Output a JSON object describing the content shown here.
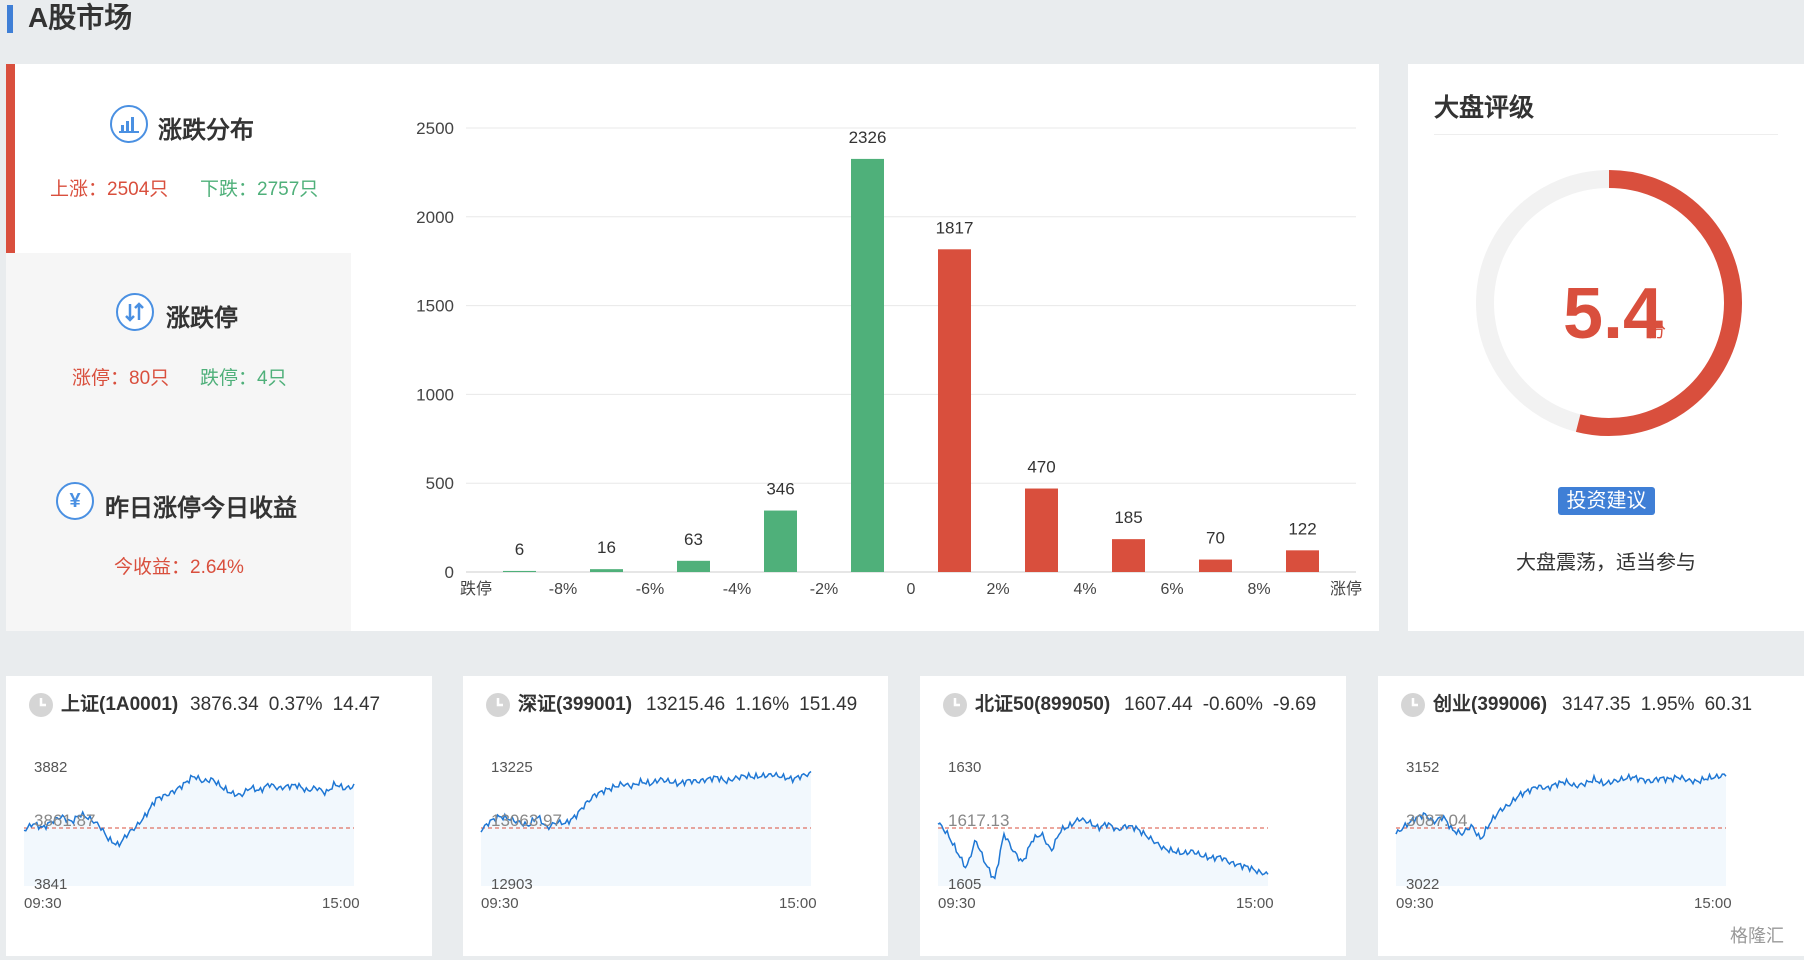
{
  "page_title": "A股市场",
  "stats": {
    "dist_title": "涨跌分布",
    "up_label": "上涨：2504只",
    "down_label": "下跌：2757只",
    "limit_title": "涨跌停",
    "limit_up_label": "涨停：80只",
    "limit_down_label": "跌停：4只",
    "yield_title": "昨日涨停今日收益",
    "yield_label": "今收益：2.64%",
    "yield_icon_glyph": "¥"
  },
  "chart_data": {
    "type": "bar",
    "categories": [
      "跌停",
      "-8%",
      "-6%",
      "-4%",
      "-2%",
      "0",
      "2%",
      "4%",
      "6%",
      "8%",
      "涨停"
    ],
    "bars": [
      {
        "value": 6,
        "color": "#4fb07a"
      },
      {
        "value": 16,
        "color": "#4fb07a"
      },
      {
        "value": 63,
        "color": "#4fb07a"
      },
      {
        "value": 346,
        "color": "#4fb07a"
      },
      {
        "value": 2326,
        "color": "#4fb07a"
      },
      {
        "value": 1817,
        "color": "#d94f3d"
      },
      {
        "value": 470,
        "color": "#d94f3d"
      },
      {
        "value": 185,
        "color": "#d94f3d"
      },
      {
        "value": 70,
        "color": "#d94f3d"
      },
      {
        "value": 122,
        "color": "#d94f3d"
      }
    ],
    "y_ticks": [
      0,
      500,
      1000,
      1500,
      2000,
      2500
    ],
    "ylim": [
      0,
      2500
    ],
    "grid": true
  },
  "rating": {
    "title": "大盘评级",
    "score": "5.4",
    "unit": "分",
    "score_fraction": 0.54,
    "advice_button": "投资建议",
    "advice_text": "大盘震荡，适当参与"
  },
  "colors": {
    "up": "#d94f3d",
    "down": "#4fb07a",
    "accent": "#3f7fd6",
    "line": "#1f77d4"
  },
  "cards": [
    {
      "name": "上证(1A0001)",
      "price": "3876.34",
      "pct": "0.37%",
      "chg": "14.47",
      "high": "3882",
      "ref": "3861.87",
      "low": "3841",
      "start": "09:30",
      "end": "15:00"
    },
    {
      "name": "深证(399001)",
      "price": "13215.46",
      "pct": "1.16%",
      "chg": "151.49",
      "high": "13225",
      "ref": "13063.97",
      "low": "12903",
      "start": "09:30",
      "end": "15:00"
    },
    {
      "name": "北证50(899050)",
      "price": "1607.44",
      "pct": "-0.60%",
      "chg": "-9.69",
      "high": "1630",
      "ref": "1617.13",
      "low": "1605",
      "start": "09:30",
      "end": "15:00"
    },
    {
      "name": "创业(399006)",
      "price": "3147.35",
      "pct": "1.95%",
      "chg": "60.31",
      "high": "3152",
      "ref": "3087.04",
      "low": "3022",
      "start": "09:30",
      "end": "15:00"
    }
  ],
  "watermark": "格隆汇"
}
